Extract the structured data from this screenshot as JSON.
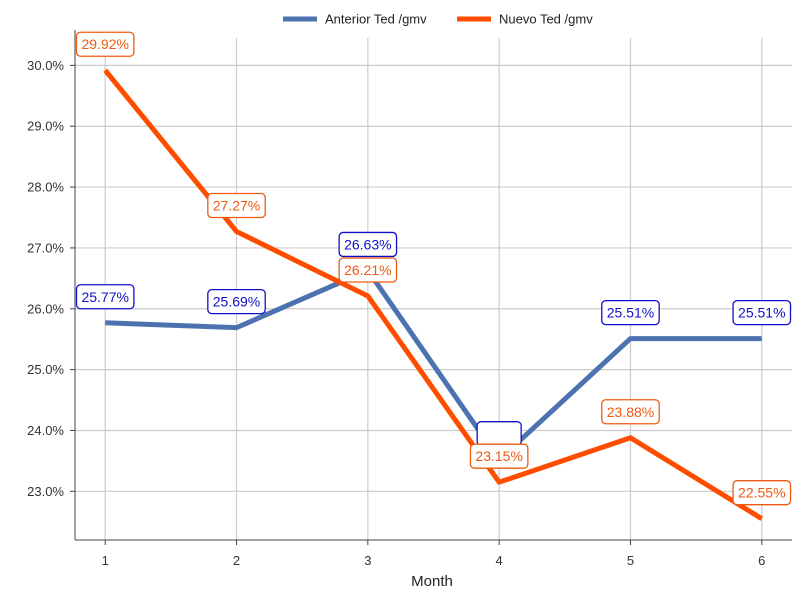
{
  "chart_data": {
    "type": "line",
    "x": [
      1,
      2,
      3,
      4,
      5,
      6
    ],
    "xlabel": "Month",
    "ylabel": "",
    "ylim": [
      22.2,
      30.45
    ],
    "yticks": [
      "23.0%",
      "24.0%",
      "25.0%",
      "26.0%",
      "27.0%",
      "28.0%",
      "29.0%",
      "30.0%"
    ],
    "ytick_values": [
      23,
      24,
      25,
      26,
      27,
      28,
      29,
      30
    ],
    "grid": true,
    "legend_position": "top-center",
    "series": [
      {
        "name": "Anterior Ted /gmv",
        "color": "#4C72B0",
        "label_color": "#1010cc",
        "values": [
          25.77,
          25.69,
          26.63,
          23.52,
          25.51,
          25.51
        ],
        "labels": [
          "25.77%",
          "25.69%",
          "26.63%",
          "",
          "25.51%",
          "25.51%"
        ]
      },
      {
        "name": "Nuevo Ted /gmv",
        "color": "#FF4D00",
        "label_color": "#ee5a10",
        "values": [
          29.92,
          27.27,
          26.21,
          23.15,
          23.88,
          22.55
        ],
        "labels": [
          "29.92%",
          "27.27%",
          "26.21%",
          "23.15%",
          "23.88%",
          "22.55%"
        ]
      }
    ]
  }
}
